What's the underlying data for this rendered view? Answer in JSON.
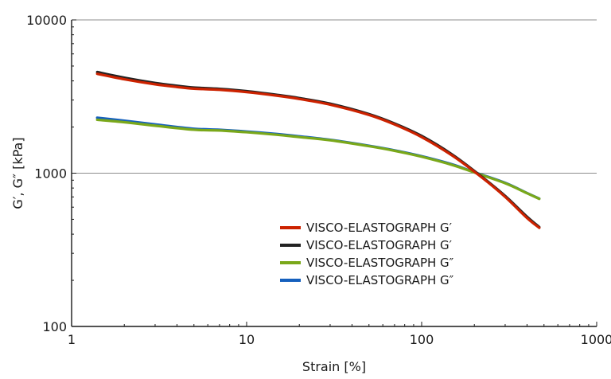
{
  "chart_data": {
    "type": "line",
    "xlabel": "Strain [%]",
    "ylabel": "G′, G″ [kPa]",
    "xscale": "log",
    "yscale": "log",
    "xlim": [
      1,
      1000
    ],
    "ylim": [
      100,
      10000
    ],
    "xticks": [
      "1",
      "10",
      "100",
      "1000"
    ],
    "yticks": [
      "100",
      "1000",
      "10000"
    ],
    "grid": "horizontal",
    "legend_position": "center-right",
    "series": [
      {
        "name": "VISCO-ELASTOGRAPH G′",
        "color": "#cc2200",
        "x": [
          1.4,
          2,
          3,
          4,
          5,
          7,
          10,
          15,
          20,
          30,
          50,
          70,
          100,
          150,
          220,
          300,
          400,
          470
        ],
        "y": [
          4450,
          4100,
          3800,
          3650,
          3560,
          3500,
          3380,
          3200,
          3050,
          2800,
          2400,
          2080,
          1720,
          1300,
          940,
          700,
          510,
          440
        ]
      },
      {
        "name": "VISCO-ELASTOGRAPH G′",
        "color": "#222222",
        "x": [
          1.4,
          2,
          3,
          4,
          5,
          7,
          10,
          15,
          20,
          30,
          50,
          70,
          100,
          150,
          220,
          300,
          400,
          470
        ],
        "y": [
          4570,
          4200,
          3880,
          3720,
          3620,
          3550,
          3430,
          3240,
          3090,
          2840,
          2430,
          2110,
          1750,
          1320,
          950,
          710,
          520,
          445
        ]
      },
      {
        "name": "VISCO-ELASTOGRAPH G″",
        "color": "#7aa81a",
        "x": [
          1.4,
          2,
          3,
          5,
          7,
          10,
          15,
          20,
          30,
          50,
          70,
          100,
          150,
          200,
          300,
          400,
          470
        ],
        "y": [
          2230,
          2150,
          2040,
          1920,
          1900,
          1850,
          1780,
          1720,
          1640,
          1500,
          1400,
          1280,
          1130,
          1010,
          860,
          740,
          680
        ]
      },
      {
        "name": "VISCO-ELASTOGRAPH G″",
        "color": "#1560bd",
        "x": [
          1.4,
          2,
          3,
          5,
          7,
          10,
          15,
          20,
          30,
          50,
          70,
          100,
          150,
          200,
          300,
          400,
          470
        ],
        "y": [
          2300,
          2200,
          2080,
          1950,
          1920,
          1870,
          1800,
          1740,
          1650,
          1510,
          1410,
          1290,
          1140,
          1015,
          865,
          742,
          682
        ]
      }
    ]
  }
}
